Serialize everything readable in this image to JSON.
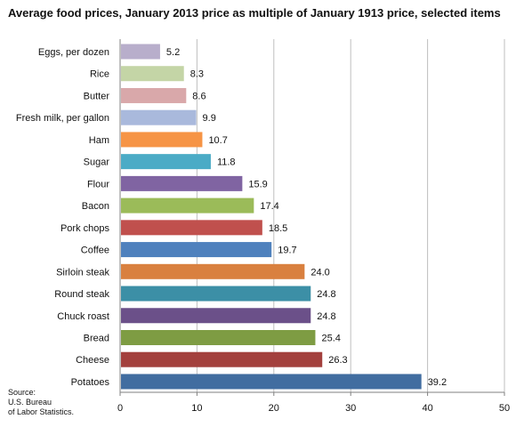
{
  "title": "Average food prices, January 2013 price as multiple of January 1913 price, selected items",
  "source_lines": [
    "Source:",
    "U.S. Bureau",
    "of Labor Statistics."
  ],
  "chart_data": {
    "type": "bar",
    "orientation": "horizontal",
    "title": "Average food prices, January 2013 price as multiple of January 1913 price, selected items",
    "categories": [
      "Eggs, per dozen",
      "Rice",
      "Butter",
      "Fresh milk, per gallon",
      "Ham",
      "Sugar",
      "Flour",
      "Bacon",
      "Pork chops",
      "Coffee",
      "Sirloin steak",
      "Round steak",
      "Chuck roast",
      "Bread",
      "Cheese",
      "Potatoes"
    ],
    "values": [
      5.2,
      8.3,
      8.6,
      9.9,
      10.7,
      11.8,
      15.9,
      17.4,
      18.5,
      19.7,
      24.0,
      24.8,
      24.8,
      25.4,
      26.3,
      39.2
    ],
    "value_labels": [
      "5.2",
      "8.3",
      "8.6",
      "9.9",
      "10.7",
      "11.8",
      "15.9",
      "17.4",
      "18.5",
      "19.7",
      "24.0",
      "24.8",
      "24.8",
      "25.4",
      "26.3",
      "39.2"
    ],
    "bar_colors": [
      "#b8aecb",
      "#c4d5a6",
      "#d9a8aa",
      "#a9b9dc",
      "#f69445",
      "#4babc6",
      "#8064a2",
      "#9bbb59",
      "#c0504d",
      "#4f81bd",
      "#d9803f",
      "#3c8fa6",
      "#6b5089",
      "#7e9c43",
      "#a3403d",
      "#416da0"
    ],
    "xlim": [
      0,
      50
    ],
    "x_ticks": [
      0,
      10,
      20,
      30,
      40,
      50
    ],
    "x_tick_labels": [
      "0",
      "10",
      "20",
      "30",
      "40",
      "50"
    ],
    "grid": "vertical gridlines",
    "legend": "none"
  }
}
